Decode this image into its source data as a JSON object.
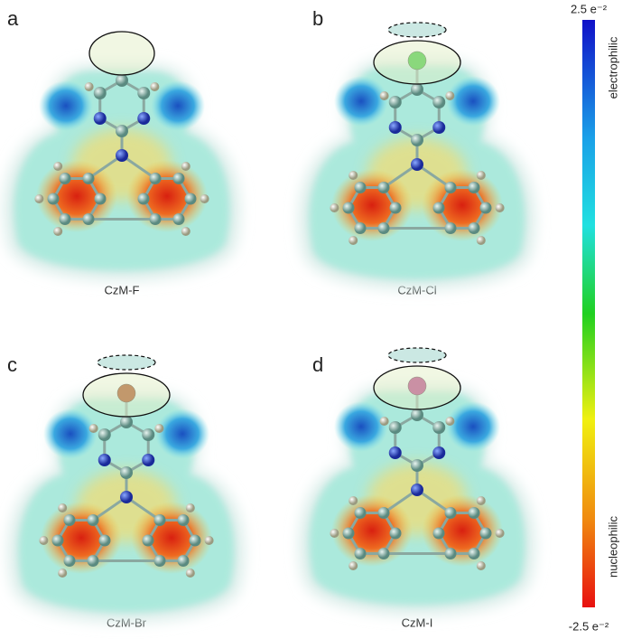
{
  "panels": [
    {
      "letter": "a",
      "label": "CzM-F"
    },
    {
      "letter": "b",
      "label": "CzM-Cl"
    },
    {
      "letter": "c",
      "label": "CzM-Br"
    },
    {
      "letter": "d",
      "label": "CzM-I"
    }
  ],
  "colorbar": {
    "max_label": "2.5 e⁻²",
    "min_label": "-2.5 e⁻²",
    "top_text": "electrophilic",
    "bottom_text": "nucleophilic"
  }
}
